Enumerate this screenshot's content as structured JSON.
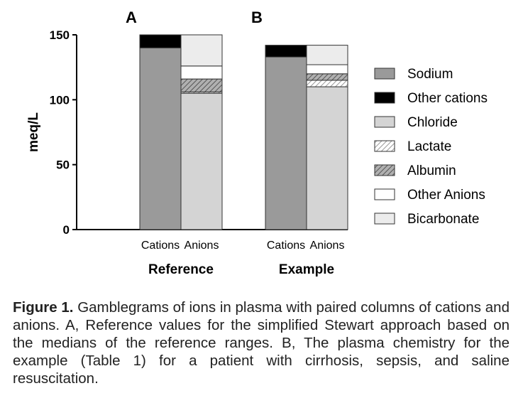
{
  "chart_data": {
    "type": "bar",
    "stacked": true,
    "ylabel": "meq/L",
    "ylim": [
      0,
      150
    ],
    "yticks": [
      0,
      50,
      100,
      150
    ],
    "grid": false,
    "legend_position": "right",
    "groups": [
      {
        "panel_label": "A",
        "name": "Reference",
        "columns": [
          {
            "label": "Cations",
            "segments": [
              {
                "component": "Sodium",
                "value": 140
              },
              {
                "component": "Other cations",
                "value": 10
              }
            ]
          },
          {
            "label": "Anions",
            "segments": [
              {
                "component": "Chloride",
                "value": 105
              },
              {
                "component": "Lactate",
                "value": 1
              },
              {
                "component": "Albumin",
                "value": 10
              },
              {
                "component": "Other Anions",
                "value": 10
              },
              {
                "component": "Bicarbonate",
                "value": 24
              }
            ]
          }
        ]
      },
      {
        "panel_label": "B",
        "name": "Example",
        "columns": [
          {
            "label": "Cations",
            "segments": [
              {
                "component": "Sodium",
                "value": 133
              },
              {
                "component": "Other cations",
                "value": 9
              }
            ]
          },
          {
            "label": "Anions",
            "segments": [
              {
                "component": "Chloride",
                "value": 110
              },
              {
                "component": "Lactate",
                "value": 5
              },
              {
                "component": "Albumin",
                "value": 5
              },
              {
                "component": "Other Anions",
                "value": 7
              },
              {
                "component": "Bicarbonate",
                "value": 15
              }
            ]
          }
        ]
      }
    ],
    "legend": [
      {
        "component": "Sodium",
        "fill": "#9a9a9a",
        "pattern": "solid"
      },
      {
        "component": "Other cations",
        "fill": "#000000",
        "pattern": "solid"
      },
      {
        "component": "Chloride",
        "fill": "#d4d4d4",
        "pattern": "solid"
      },
      {
        "component": "Lactate",
        "fill": "#ffffff",
        "pattern": "light-diagonal"
      },
      {
        "component": "Albumin",
        "fill": "#aaaaaa",
        "pattern": "dark-diagonal"
      },
      {
        "component": "Other Anions",
        "fill": "#ffffff",
        "pattern": "solid"
      },
      {
        "component": "Bicarbonate",
        "fill": "#ececec",
        "pattern": "solid"
      }
    ]
  },
  "caption": {
    "lead": "Figure 1.",
    "text": " Gamblegrams of ions in plasma with paired columns of cations and anions. A, Reference values for the simplified Stewart approach based on the medians of the reference ranges. B, The plasma chemistry for the example (Table 1) for a patient with cirrhosis, sepsis, and saline resuscitation."
  }
}
